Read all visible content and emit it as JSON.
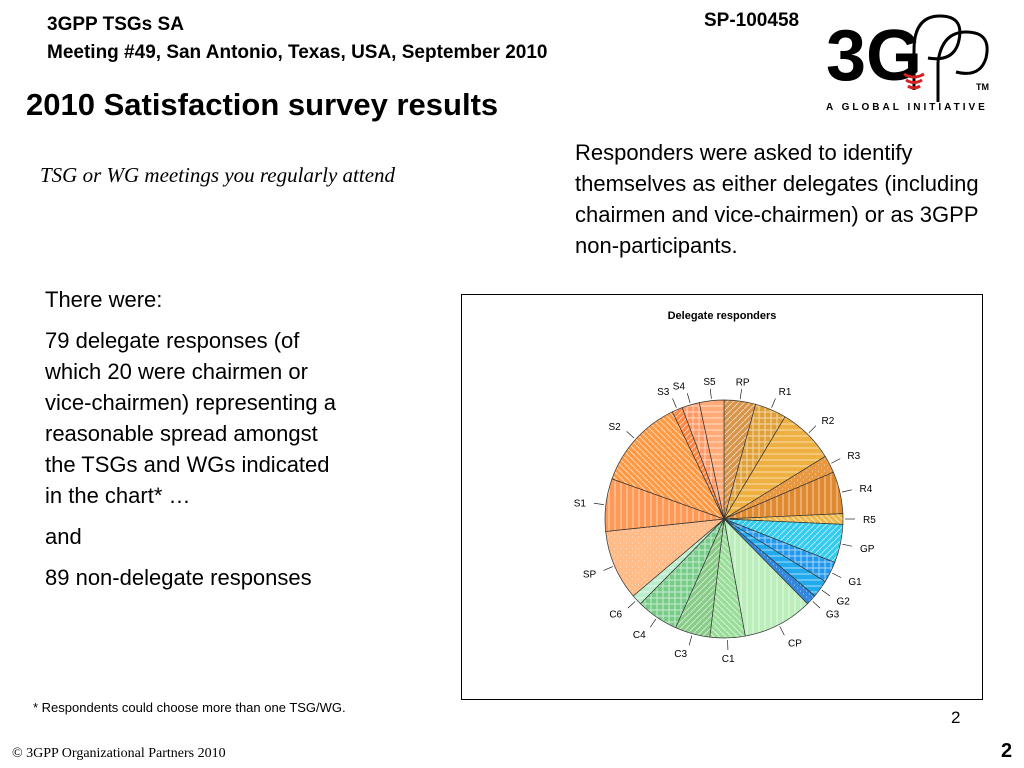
{
  "header": {
    "line1": "3GPP TSGs SA",
    "line2": "Meeting #49, San Antonio, Texas, USA, September 2010",
    "doc_number": "SP-100458"
  },
  "logo": {
    "tagline": "A GLOBAL INITIATIVE",
    "tm": "TM",
    "wordmark": "3GPP"
  },
  "slide": {
    "title": "2010 Satisfaction survey results",
    "subtitle": "TSG or WG meetings you regularly attend",
    "responders_text": "Responders were asked to identify themselves as either delegates (including chairmen and vice-chairmen) or as 3GPP non-participants.",
    "body": [
      "There were:",
      "79 delegate responses (of which 20 were chairmen or vice-chairmen) representing a reasonable spread amongst the TSGs and WGs indicated in the chart* …",
      "and",
      "89 non-delegate responses"
    ],
    "footnote": "* Respondents could choose more than one TSG/WG.",
    "page_small": "2",
    "copyright": "© 3GPP Organizational Partners 2010",
    "page_big": "2"
  },
  "chart_data": {
    "type": "pie",
    "title": "Delegate responders",
    "categories": [
      "RP",
      "R1",
      "R2",
      "R3",
      "R4",
      "R5",
      "GP",
      "G1",
      "G2",
      "G3",
      "CP",
      "C1",
      "C3",
      "C4",
      "C6",
      "SP",
      "S1",
      "S2",
      "S3",
      "S4",
      "S5"
    ],
    "values": [
      4.5,
      4.5,
      8.0,
      2.5,
      6.0,
      1.5,
      5.5,
      3.0,
      2.5,
      1.5,
      10.0,
      5.0,
      5.0,
      6.0,
      1.5,
      10.0,
      7.5,
      13.0,
      1.5,
      2.5,
      3.5
    ],
    "colors": [
      "#d8954a",
      "#e0a038",
      "#eeb040",
      "#e89840",
      "#e08a30",
      "#f0b848",
      "#33ccee",
      "#2299ee",
      "#22aaee",
      "#3388dd",
      "#bbeebb",
      "#99dd99",
      "#88cc88",
      "#77cc88",
      "#bbeecc",
      "#ffbb88",
      "#ff9955",
      "#ff9944",
      "#ff8844",
      "#ff9966",
      "#ffaa77"
    ],
    "legend": "none (labels on slices)"
  }
}
